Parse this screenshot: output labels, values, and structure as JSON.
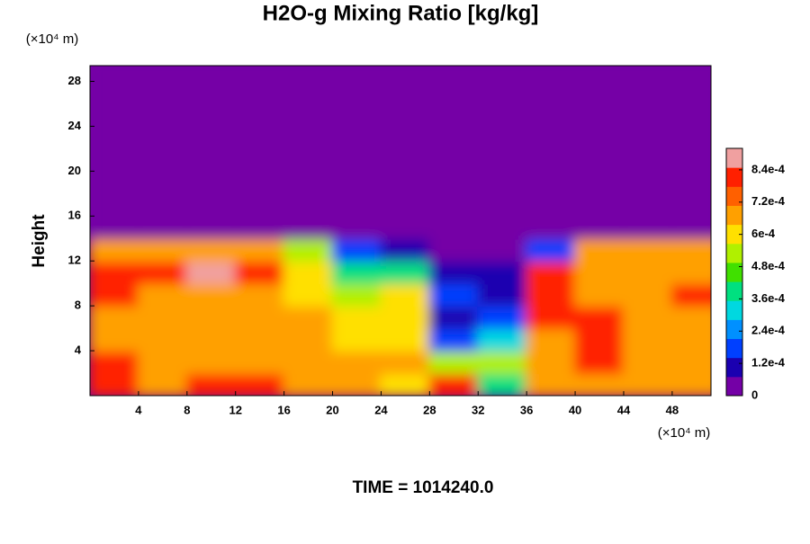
{
  "chart_data": {
    "type": "heatmap",
    "title": "H2O-g Mixing Ratio [kg/kg]",
    "y_label": "Height",
    "y_unit": "(×10⁴ m)",
    "x_unit": "(×10⁴ m)",
    "footer": "TIME = 1014240.0",
    "x": [
      2,
      6,
      10,
      14,
      18,
      22,
      26,
      30,
      34,
      38,
      42,
      46,
      50
    ],
    "y": [
      1,
      3,
      5,
      7,
      9,
      11,
      13,
      15,
      17,
      19,
      21,
      23,
      25,
      27,
      29
    ],
    "values": [
      [
        0.0008,
        0.0007,
        0.0008,
        0.0008,
        0.0007,
        0.0007,
        0.0006,
        0.0008,
        0.0004,
        0.0007,
        0.0007,
        0.0007,
        0.0007
      ],
      [
        0.0008,
        0.0007,
        0.0007,
        0.0007,
        0.0007,
        0.0007,
        0.0007,
        0.0005,
        0.0005,
        0.0007,
        0.0008,
        0.0007,
        0.0007
      ],
      [
        0.0007,
        0.0007,
        0.0007,
        0.0007,
        0.0007,
        0.0006,
        0.0006,
        0.0002,
        0.0003,
        0.0007,
        0.0008,
        0.0007,
        0.0007
      ],
      [
        0.0007,
        0.0007,
        0.0007,
        0.0007,
        0.0007,
        0.0006,
        0.0006,
        0.0001,
        0.0002,
        0.0008,
        0.0008,
        0.0007,
        0.0007
      ],
      [
        0.0008,
        0.0007,
        0.0007,
        0.0007,
        0.0006,
        0.0005,
        0.0006,
        0.0002,
        0.0001,
        0.0008,
        0.0007,
        0.0007,
        0.0008
      ],
      [
        0.0008,
        0.0008,
        0.0009,
        0.0008,
        0.0006,
        0.0004,
        0.0004,
        0.0001,
        0.0001,
        0.0008,
        0.0007,
        0.0007,
        0.0007
      ],
      [
        0.0007,
        0.0007,
        0.0007,
        0.0007,
        0.0005,
        0.0002,
        0.0001,
        3e-05,
        3e-05,
        0.0002,
        0.0007,
        0.0007,
        0.0007
      ],
      [
        0,
        0,
        0,
        0,
        0,
        0,
        0,
        0,
        0,
        0,
        0,
        0,
        0
      ],
      [
        0,
        0,
        0,
        0,
        0,
        0,
        0,
        0,
        0,
        0,
        0,
        0,
        0
      ],
      [
        0,
        0,
        0,
        0,
        0,
        0,
        0,
        0,
        0,
        0,
        0,
        0,
        0
      ],
      [
        0,
        0,
        0,
        0,
        0,
        0,
        0,
        0,
        0,
        0,
        0,
        0,
        0
      ],
      [
        0,
        0,
        0,
        0,
        0,
        0,
        0,
        0,
        0,
        0,
        0,
        0,
        0
      ],
      [
        0,
        0,
        0,
        0,
        0,
        0,
        0,
        0,
        0,
        0,
        0,
        0,
        0
      ],
      [
        0,
        0,
        0,
        0,
        0,
        0,
        0,
        0,
        0,
        0,
        0,
        0,
        0
      ],
      [
        0,
        0,
        0,
        0,
        0,
        0,
        0,
        0,
        0,
        0,
        0,
        0,
        0
      ]
    ],
    "xlim": [
      0,
      51.2
    ],
    "ylim": [
      0,
      29.4
    ],
    "xticks": [
      4,
      8,
      12,
      16,
      20,
      24,
      28,
      32,
      36,
      40,
      44,
      48
    ],
    "yticks": [
      4,
      8,
      12,
      16,
      20,
      24,
      28
    ],
    "clim": [
      0,
      0.00092
    ],
    "cticks": [
      {
        "value": 0,
        "label": "0"
      },
      {
        "value": 0.00012,
        "label": "1.2e-4"
      },
      {
        "value": 0.00024,
        "label": "2.4e-4"
      },
      {
        "value": 0.00036,
        "label": "3.6e-4"
      },
      {
        "value": 0.00048,
        "label": "4.8e-4"
      },
      {
        "value": 0.0006,
        "label": "6e-4"
      },
      {
        "value": 0.00072,
        "label": "7.2e-4"
      },
      {
        "value": 0.00084,
        "label": "8.4e-4"
      }
    ],
    "colormap": [
      "#7400a6",
      "#1a00b0",
      "#0040ff",
      "#0090ff",
      "#00d8e0",
      "#00e080",
      "#40e000",
      "#b0f000",
      "#ffe000",
      "#ffa000",
      "#ff6000",
      "#ff2000",
      "#f0a0a0"
    ]
  }
}
